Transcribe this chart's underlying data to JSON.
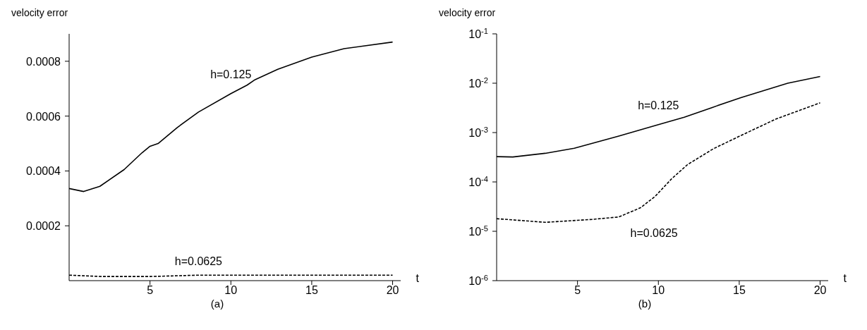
{
  "chart_data": [
    {
      "type": "line",
      "ylabel": "velocity error",
      "xlabel": "t",
      "annotations": [
        "(a)"
      ],
      "xlim": [
        0,
        20.5
      ],
      "xticks": [
        5,
        10,
        15,
        20
      ],
      "ylim": [
        0,
        0.0009
      ],
      "yticks": [
        0.0002,
        0.0004,
        0.0006,
        0.0008
      ],
      "grid": false,
      "legend": false,
      "marker": "none",
      "series": [
        {
          "name": "h=0.125",
          "color": "#000000",
          "line_style": "solid",
          "x": [
            0,
            0.9,
            1.9,
            3.4,
            4.5,
            5,
            5.5,
            6.7,
            8,
            10,
            11,
            11.5,
            12.9,
            15,
            17,
            20
          ],
          "values": [
            0.000336,
            0.000325,
            0.000344,
            0.000405,
            0.000466,
            0.00049,
            0.0005,
            0.000559,
            0.000615,
            0.000682,
            0.000713,
            0.000733,
            0.000771,
            0.000815,
            0.000846,
            0.00087
          ]
        },
        {
          "name": "h=0.0625",
          "color": "#000000",
          "line_style": "dashed",
          "x": [
            0,
            2,
            5,
            8,
            12,
            16,
            20
          ],
          "values": [
            2e-05,
            1.5e-05,
            1.5e-05,
            2e-05,
            2e-05,
            2e-05,
            2e-05
          ]
        }
      ]
    },
    {
      "type": "line",
      "ylabel": "velocity error",
      "xlabel": "t",
      "annotations": [
        "(b)"
      ],
      "log": "y",
      "xlim": [
        0,
        20.5
      ],
      "xticks": [
        5,
        10,
        15,
        20
      ],
      "ylim": [
        1e-06,
        0.1
      ],
      "yticks": [
        {
          "value": 1e-06,
          "label": "10$^{-6}$"
        },
        {
          "value": 1e-05,
          "label": "10$^{-5}$"
        },
        {
          "value": 0.0001,
          "label": "10$^{-4}$"
        },
        {
          "value": 0.001,
          "label": "10$^{-3}$"
        },
        {
          "value": 0.01,
          "label": "10$^{-2}$"
        },
        {
          "value": 0.1,
          "label": "10$^{-1}$"
        }
      ],
      "grid": false,
      "legend": false,
      "marker": "none",
      "series": [
        {
          "name": "h=0.125",
          "color": "#000000",
          "line_style": "solid",
          "x": [
            0,
            1,
            3,
            4.8,
            7.55,
            10,
            11.6,
            13.3,
            15.1,
            18,
            20
          ],
          "values": [
            0.000325,
            0.00032,
            0.00038,
            0.00048,
            0.00085,
            0.00145,
            0.00204,
            0.0032,
            0.0051,
            0.01,
            0.0137
          ]
        },
        {
          "name": "h=0.0625",
          "color": "#000000",
          "line_style": "dashed",
          "x": [
            0,
            3,
            5.9,
            7.55,
            8.9,
            9.8,
            10.8,
            11.8,
            13.4,
            15.1,
            17.3,
            20
          ],
          "values": [
            1.8e-05,
            1.52e-05,
            1.74e-05,
            1.95e-05,
            3e-05,
            5.1e-05,
            0.000114,
            0.000224,
            0.00047,
            0.00087,
            0.0019,
            0.004
          ]
        }
      ]
    }
  ]
}
